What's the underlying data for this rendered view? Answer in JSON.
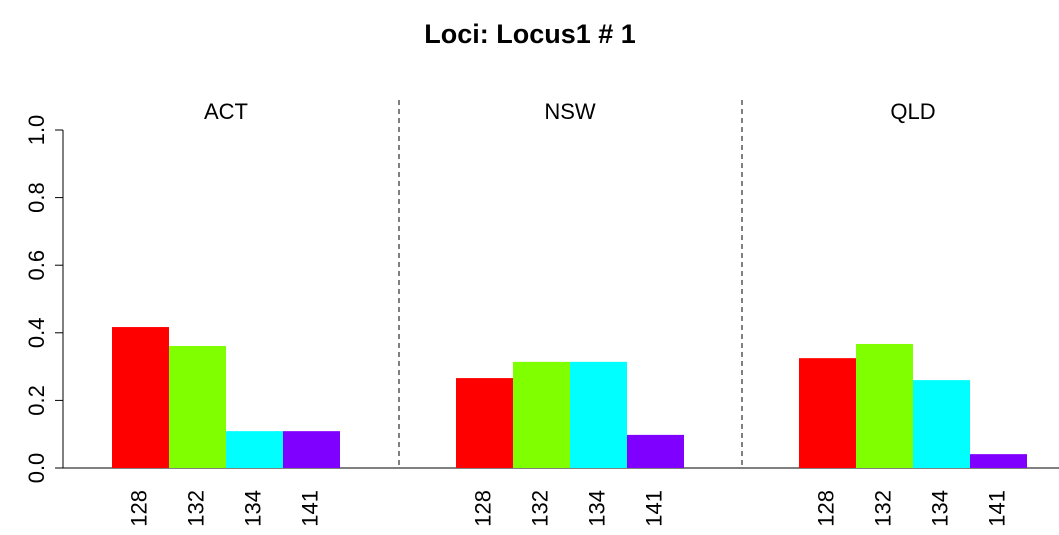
{
  "title": "Loci: Locus1 # 1",
  "chart_data": [
    {
      "type": "bar",
      "title": "ACT",
      "categories": [
        "128",
        "132",
        "134",
        "141"
      ],
      "values": [
        0.417,
        0.361,
        0.109,
        0.109
      ],
      "colors": [
        "#ff0000",
        "#80ff00",
        "#00ffff",
        "#8000ff"
      ],
      "ylim": [
        0,
        1
      ],
      "yticks": [
        {
          "value": 0,
          "label": "0.0"
        },
        0.2,
        0.4,
        0.6,
        0.8,
        {
          "value": 1,
          "label": "1.0"
        }
      ]
    },
    {
      "type": "bar",
      "title": "NSW",
      "categories": [
        "128",
        "132",
        "134",
        "141"
      ],
      "values": [
        0.266,
        0.314,
        0.314,
        0.098
      ],
      "colors": [
        "#ff0000",
        "#80ff00",
        "#00ffff",
        "#8000ff"
      ],
      "ylim": [
        0,
        1
      ]
    },
    {
      "type": "bar",
      "title": "QLD",
      "categories": [
        "128",
        "132",
        "134",
        "141"
      ],
      "values": [
        0.325,
        0.367,
        0.26,
        0.041
      ],
      "colors": [
        "#ff0000",
        "#80ff00",
        "#00ffff",
        "#8000ff"
      ],
      "ylim": [
        0,
        1
      ]
    }
  ]
}
